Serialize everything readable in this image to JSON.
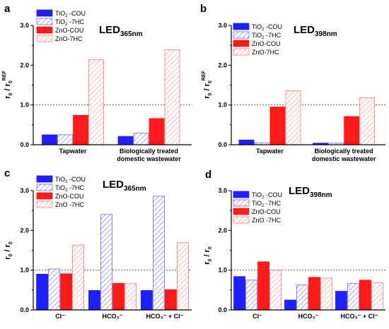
{
  "colors": {
    "tio2_cou": "#1f1fff",
    "tio2_7hc_stroke": "#6a6aff",
    "zno_cou": "#ff1a1a",
    "zno_7hc_stroke": "#ff7a7a",
    "axis": "#000000",
    "reference_line": "#555555"
  },
  "chart_data": [
    {
      "type": "bar",
      "panel_label": "a",
      "led_main": "LED",
      "led_sub": "365nm",
      "y_label_main": "r",
      "y_label_sub1": "0",
      "y_label_mid": " / r",
      "y_label_sub2": "0",
      "y_label_sup": "REF",
      "ylim": [
        0,
        3.0
      ],
      "yticks": [
        "0.0",
        "1.0",
        "2.0",
        "3.0"
      ],
      "reference_line": 1.0,
      "categories": [
        "Tapwater",
        "Biologically treated domestic wastewater"
      ],
      "category_lines": [
        [
          "Tapwater"
        ],
        [
          "Biologically treated",
          "domestic wastewater"
        ]
      ],
      "series": [
        {
          "name": "TiO2 -COU",
          "name_main": "TiO",
          "name_sub": "2",
          "name_rest": " -COU",
          "style": "solid-blue",
          "values": [
            0.25,
            0.21
          ]
        },
        {
          "name": "TiO2 -7HC",
          "name_main": "TiO",
          "name_sub": "2",
          "name_rest": " -7HC",
          "style": "hatch-blue",
          "values": [
            0.25,
            0.29
          ]
        },
        {
          "name": "ZnO-COU",
          "name_main": "ZnO-COU",
          "name_sub": "",
          "name_rest": "",
          "style": "solid-red",
          "values": [
            0.74,
            0.66
          ]
        },
        {
          "name": "ZnO-7HC",
          "name_main": "ZnO-7HC",
          "name_sub": "",
          "name_rest": "",
          "style": "hatch-red",
          "values": [
            2.14,
            2.39
          ]
        }
      ]
    },
    {
      "type": "bar",
      "panel_label": "b",
      "led_main": "LED",
      "led_sub": "398nm",
      "y_label_main": "r",
      "y_label_sub1": "0",
      "y_label_mid": " / r",
      "y_label_sub2": "0",
      "y_label_sup": "REF",
      "ylim": [
        0,
        3.0
      ],
      "yticks": [
        "0.0",
        "1.0",
        "2.0",
        "3.0"
      ],
      "reference_line": 1.0,
      "categories": [
        "Tapwater",
        "Biologically treated domestic wastewater"
      ],
      "category_lines": [
        [
          "Tapwater"
        ],
        [
          "Biologically treated",
          "domestic wastewater"
        ]
      ],
      "series": [
        {
          "name": "TiO2 -COU",
          "name_main": "TiO",
          "name_sub": "2",
          "name_rest": " -COU",
          "style": "solid-blue",
          "values": [
            0.12,
            0.04
          ]
        },
        {
          "name": "TiO2 -7HC",
          "name_main": "TiO",
          "name_sub": "2",
          "name_rest": " -7HC",
          "style": "hatch-blue",
          "values": [
            0.05,
            0.04
          ]
        },
        {
          "name": "ZnO-COU",
          "name_main": "ZnO-COU",
          "name_sub": "",
          "name_rest": "",
          "style": "solid-red",
          "values": [
            0.95,
            0.71
          ]
        },
        {
          "name": "ZnO-7HC",
          "name_main": "ZnO-7HC",
          "name_sub": "",
          "name_rest": "",
          "style": "hatch-red",
          "values": [
            1.36,
            1.18
          ]
        }
      ]
    },
    {
      "type": "bar",
      "panel_label": "c",
      "led_main": "LED",
      "led_sub": "365nm",
      "y_label_main": "r",
      "y_label_sub1": "0",
      "y_label_mid": " / r",
      "y_label_sub2": "0",
      "y_label_sup": "",
      "ylim": [
        0,
        3.0
      ],
      "yticks": [
        "0.0",
        "1.0",
        "2.0",
        "3.0"
      ],
      "reference_line": 1.0,
      "categories": [
        "Cl⁻",
        "HCO₃⁻",
        "HCO₃⁻ + Cl⁻"
      ],
      "category_lines": [
        [
          "Cl⁻"
        ],
        [
          "HCO₃⁻"
        ],
        [
          "HCO₃⁻ + Cl⁻"
        ]
      ],
      "series": [
        {
          "name": "TiO2 -COU",
          "name_main": "TiO",
          "name_sub": "2",
          "name_rest": " -COU",
          "style": "solid-blue",
          "values": [
            0.9,
            0.49,
            0.49
          ]
        },
        {
          "name": "TiO2 -7HC",
          "name_main": "TiO",
          "name_sub": "2",
          "name_rest": " -7HC",
          "style": "hatch-blue",
          "values": [
            1.03,
            2.4,
            2.86
          ]
        },
        {
          "name": "ZnO-COU",
          "name_main": "ZnO-COU",
          "name_sub": "",
          "name_rest": "",
          "style": "solid-red",
          "values": [
            0.91,
            0.67,
            0.51
          ]
        },
        {
          "name": "ZnO -7HC",
          "name_main": "ZnO -7HC",
          "name_sub": "",
          "name_rest": "",
          "style": "hatch-red",
          "values": [
            1.63,
            0.66,
            1.69
          ]
        }
      ]
    },
    {
      "type": "bar",
      "panel_label": "d",
      "led_main": "LED",
      "led_sub": "398nm",
      "y_label_main": "r",
      "y_label_sub1": "0",
      "y_label_mid": " / r",
      "y_label_sub2": "0",
      "y_label_sup": "",
      "ylim": [
        0,
        3.0
      ],
      "yticks": [
        "0.0",
        "1.0",
        "2.0",
        "3.0"
      ],
      "reference_line": 1.0,
      "categories": [
        "Cl⁻",
        "HCO₃⁻",
        "HCO₃⁻ + Cl⁻"
      ],
      "category_lines": [
        [
          "Cl⁻"
        ],
        [
          "HCO₃⁻"
        ],
        [
          "HCO₃⁻ + Cl⁻"
        ]
      ],
      "series": [
        {
          "name": "TiO2 -COU",
          "name_main": "TiO",
          "name_sub": "2",
          "name_rest": " -COU",
          "style": "solid-blue",
          "values": [
            0.84,
            0.25,
            0.47
          ]
        },
        {
          "name": "TiO2 -7HC",
          "name_main": "TiO",
          "name_sub": "2",
          "name_rest": " -7HC",
          "style": "hatch-blue",
          "values": [
            0.75,
            0.63,
            0.67
          ]
        },
        {
          "name": "ZnO-COU",
          "name_main": "ZnO-COU",
          "name_sub": "",
          "name_rest": "",
          "style": "solid-red",
          "values": [
            1.21,
            0.82,
            0.75
          ]
        },
        {
          "name": "ZnO -7HC",
          "name_main": "ZnO -7HC",
          "name_sub": "",
          "name_rest": "",
          "style": "hatch-red",
          "values": [
            1.0,
            0.8,
            0.69
          ]
        }
      ]
    }
  ]
}
